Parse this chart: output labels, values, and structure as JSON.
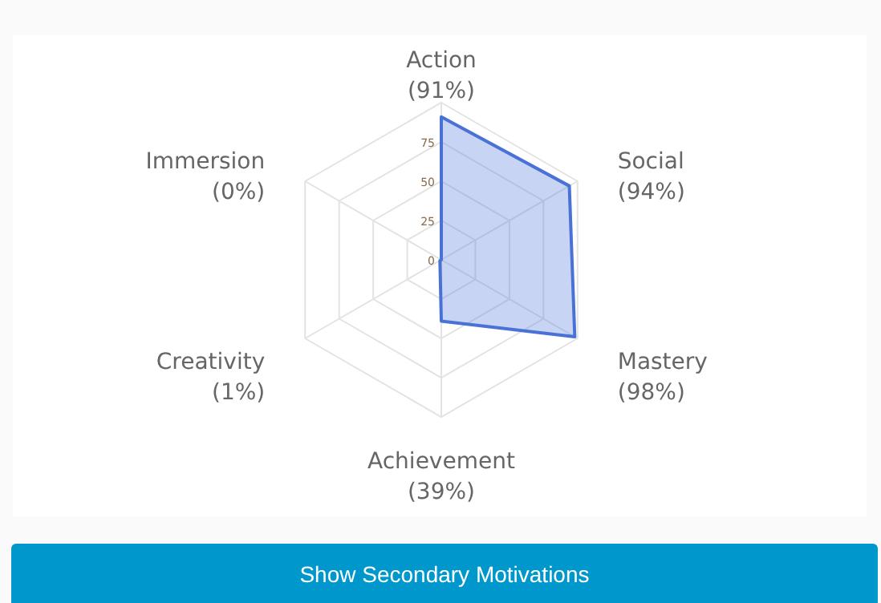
{
  "chart_data": {
    "type": "radar",
    "categories": [
      "Action\n(91%)",
      "Social\n(94%)",
      "Mastery\n(98%)",
      "Achievement\n(39%)",
      "Creativity\n(1%)",
      "Immersion\n(0%)"
    ],
    "series": [
      {
        "color": "#4a72d6",
        "values": [
          91,
          94,
          98,
          39,
          1,
          0
        ]
      }
    ],
    "ylim": [
      0,
      100
    ],
    "yticks": [
      0,
      25,
      50,
      75
    ],
    "annotations": [
      "Show Secondary Motivations"
    ]
  }
}
